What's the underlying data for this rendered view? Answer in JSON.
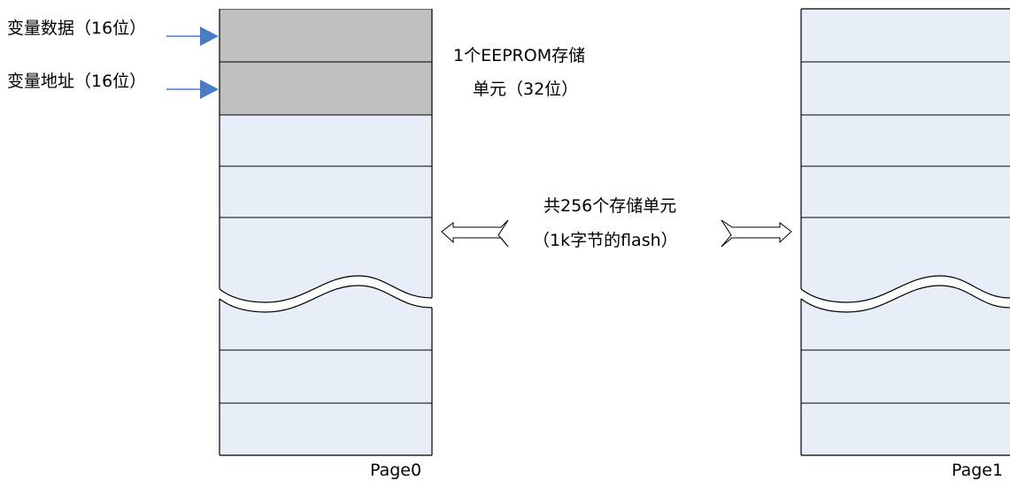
{
  "colors": {
    "data_cell": "#c0c0c0",
    "empty_cell": "#e8eef8",
    "outline": "#000000",
    "pointer_arrow": "#4a7cc4"
  },
  "labels": {
    "var_data": "变量数据（16位）",
    "var_addr": "变量地址（16位）",
    "eeprom_unit_line1": "1个EEPROM存储",
    "eeprom_unit_line2": "单元（32位）",
    "total_line1": "共256个存储单元",
    "total_line2": "（1k字节的flash）",
    "page0": "Page0",
    "page1": "Page1"
  }
}
